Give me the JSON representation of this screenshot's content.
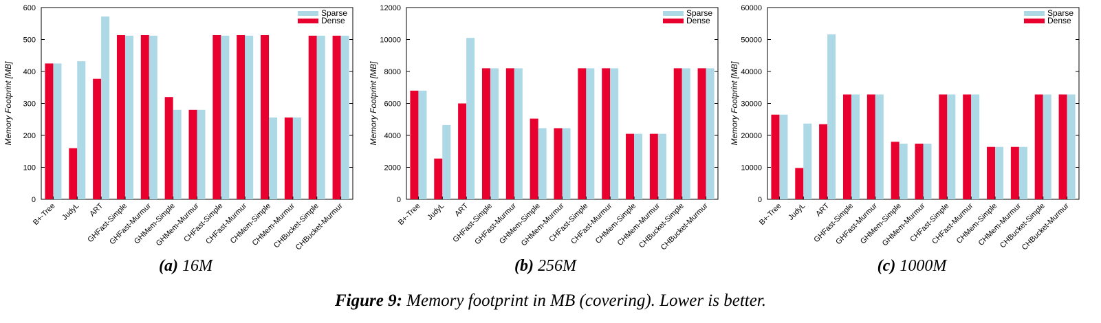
{
  "figure": {
    "caption_label": "Figure 9:",
    "caption_text": " Memory footprint in MB (covering). Lower is better."
  },
  "colors": {
    "sparse": "#add8e6",
    "dense": "#e8002f"
  },
  "chart_data": [
    {
      "type": "bar",
      "label": "(a)",
      "subtitle": "16M",
      "ylabel": "Memory Footprint [MB]",
      "ylim": [
        0,
        600
      ],
      "yticks": [
        0,
        100,
        200,
        300,
        400,
        500,
        600
      ],
      "legend": "top-right",
      "grid": false,
      "categories": [
        "B+-Tree",
        "JudyL",
        "ART",
        "GHFast-Simple",
        "GHFast-Murmur",
        "GHMem-Simple",
        "GHMem-Murmur",
        "CHFast-Simple",
        "CHFast-Murmur",
        "CHMem-Simple",
        "CHMem-Murmur",
        "CHBucket-Simple",
        "CHBucket-Murmur"
      ],
      "series": [
        {
          "name": "Sparse",
          "values": [
            425,
            432,
            572,
            512,
            512,
            280,
            280,
            512,
            512,
            256,
            256,
            512,
            512
          ]
        },
        {
          "name": "Dense",
          "values": [
            425,
            160,
            377,
            514,
            514,
            320,
            280,
            514,
            514,
            514,
            256,
            512,
            512
          ]
        }
      ]
    },
    {
      "type": "bar",
      "label": "(b)",
      "subtitle": "256M",
      "ylabel": "Memory Footprint [MB]",
      "ylim": [
        0,
        12000
      ],
      "yticks": [
        0,
        2000,
        4000,
        6000,
        8000,
        10000,
        12000
      ],
      "legend": "top-right",
      "grid": false,
      "categories": [
        "B+-Tree",
        "JudyL",
        "ART",
        "GHFast-Simple",
        "GHFast-Murmur",
        "GHMem-Simple",
        "GHMem-Murmur",
        "CHFast-Simple",
        "CHFast-Murmur",
        "CHMem-Simple",
        "CHMem-Murmur",
        "CHBucket-Simple",
        "CHBucket-Murmur"
      ],
      "series": [
        {
          "name": "Sparse",
          "values": [
            6800,
            4650,
            10100,
            8200,
            8200,
            4450,
            4450,
            8200,
            8200,
            4100,
            4100,
            8200,
            8200
          ]
        },
        {
          "name": "Dense",
          "values": [
            6800,
            2550,
            6000,
            8200,
            8200,
            5050,
            4450,
            8200,
            8200,
            4100,
            4100,
            8200,
            8200
          ]
        }
      ]
    },
    {
      "type": "bar",
      "label": "(c)",
      "subtitle": "1000M",
      "ylabel": "Memory Footprint [MB]",
      "ylim": [
        0,
        60000
      ],
      "yticks": [
        0,
        10000,
        20000,
        30000,
        40000,
        50000,
        60000
      ],
      "legend": "top-right",
      "grid": false,
      "categories": [
        "B+-Tree",
        "JudyL",
        "ART",
        "GHFast-Simple",
        "GHFast-Murmur",
        "GHMem-Simple",
        "GHMem-Murmur",
        "CHFast-Simple",
        "CHFast-Murmur",
        "CHMem-Simple",
        "CHMem-Murmur",
        "CHBucket-Simple",
        "CHBucket-Murmur"
      ],
      "series": [
        {
          "name": "Sparse",
          "values": [
            26500,
            23700,
            51600,
            32800,
            32800,
            17400,
            17400,
            32800,
            32800,
            16400,
            16400,
            32800,
            32800
          ]
        },
        {
          "name": "Dense",
          "values": [
            26500,
            9800,
            23500,
            32800,
            32800,
            18000,
            17400,
            32800,
            32800,
            16400,
            16400,
            32800,
            32800
          ]
        }
      ]
    }
  ]
}
